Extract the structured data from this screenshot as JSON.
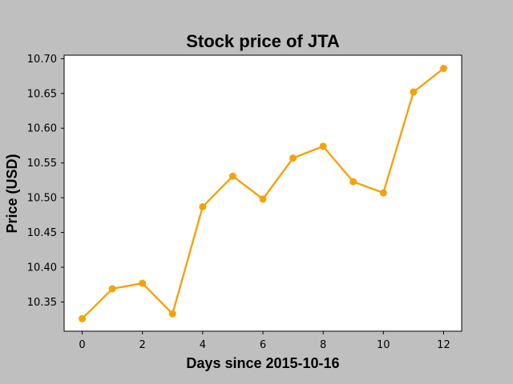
{
  "chart_data": {
    "type": "line",
    "title": "Stock price of JTA",
    "xlabel": "Days since 2015-10-16",
    "ylabel": "Price (USD)",
    "x": [
      0,
      1,
      2,
      3,
      4,
      5,
      6,
      7,
      8,
      9,
      10,
      11,
      12
    ],
    "series": [
      {
        "values": [
          10.326,
          10.369,
          10.377,
          10.333,
          10.487,
          10.531,
          10.498,
          10.557,
          10.574,
          10.523,
          10.507,
          10.652,
          10.686
        ]
      }
    ],
    "xlim": [
      -0.6,
      12.6
    ],
    "ylim": [
      10.308,
      10.705
    ],
    "xticks": [
      "0",
      "2",
      "4",
      "6",
      "8",
      "10",
      "12"
    ],
    "yticks": [
      "10.35",
      "10.40",
      "10.45",
      "10.50",
      "10.55",
      "10.60",
      "10.65",
      "10.70"
    ],
    "grid": false,
    "colors": {
      "line": "#f5a20a",
      "background": "#bfbfbf",
      "plot_background": "#ffffff"
    }
  }
}
